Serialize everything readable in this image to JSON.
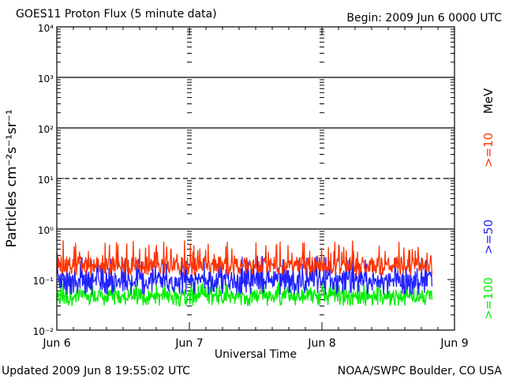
{
  "title": "GOES11 Proton Flux (5 minute data)",
  "begin_label": "Begin: 2009 Jun 6 0000 UTC",
  "updated_label": "Updated 2009 Jun  8 19:55:02 UTC",
  "source_label": "NOAA/SWPC Boulder, CO USA",
  "chart_data": {
    "type": "line",
    "title": "GOES11 Proton Flux (5 minute data)",
    "xlabel": "Universal Time",
    "ylabel": "Particles cm⁻²s⁻¹sr⁻¹",
    "y_scale": "log",
    "ylim": [
      0.01,
      10000
    ],
    "x_ticks": [
      "Jun 6",
      "Jun 7",
      "Jun 8",
      "Jun 9"
    ],
    "y_ticks": [
      "10⁻²",
      "10⁻¹",
      "10⁰",
      "10¹",
      "10²",
      "10³",
      "10⁴"
    ],
    "energy_unit_label": "MeV",
    "threshold_levels": [
      {
        "value": 1,
        "style": "solid"
      },
      {
        "value": 10,
        "style": "dashed"
      },
      {
        "value": 100,
        "style": "solid"
      },
      {
        "value": 1000,
        "style": "solid"
      }
    ],
    "x_start": "2009-06-06",
    "x_end": "2009-06-09",
    "series": [
      {
        "name": ">=10",
        "color": "#ff3300",
        "x_start": "2009-06-06 00:00 UTC",
        "x_end": "2009-06-08 19:55 UTC",
        "typical": 0.2,
        "min": 0.12,
        "max": 0.6
      },
      {
        "name": ">=50",
        "color": "#2222ff",
        "x_start": "2009-06-06 00:00 UTC",
        "x_end": "2009-06-08 19:55 UTC",
        "typical": 0.1,
        "min": 0.05,
        "max": 0.3
      },
      {
        "name": ">=100",
        "color": "#00ee00",
        "x_start": "2009-06-06 00:00 UTC",
        "x_end": "2009-06-08 19:55 UTC",
        "typical": 0.05,
        "min": 0.03,
        "max": 0.09
      }
    ]
  }
}
